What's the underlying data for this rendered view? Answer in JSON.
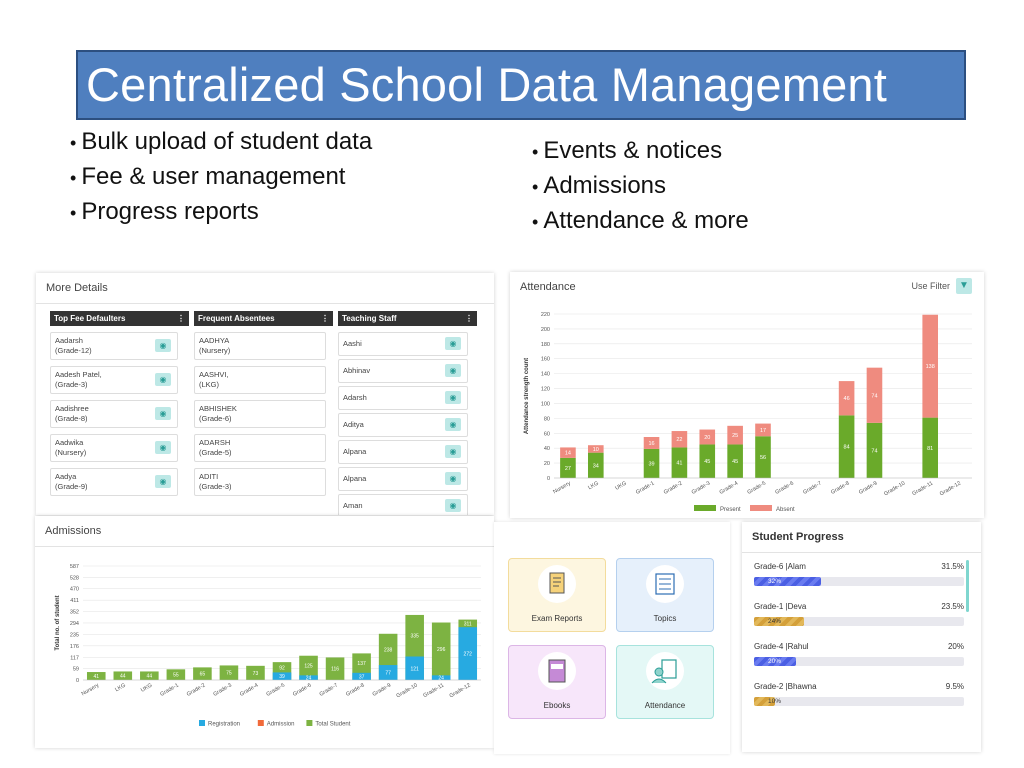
{
  "slide": {
    "title": "Centralized School Data Management",
    "bullets_left": [
      "Bulk upload of student data",
      "Fee & user management",
      "Progress reports"
    ],
    "bullets_right": [
      "Events & notices",
      "Admissions",
      "Attendance & more"
    ]
  },
  "more_details": {
    "title": "More Details",
    "columns": [
      {
        "header": "Top Fee Defaulters",
        "items": [
          [
            "Aadarsh",
            "(Grade-12)"
          ],
          [
            "Aadesh Patel,",
            "(Grade-3)"
          ],
          [
            "Aadishree",
            "(Grade-8)"
          ],
          [
            "Aadwika",
            "(Nursery)"
          ],
          [
            "Aadya",
            "(Grade-9)"
          ]
        ]
      },
      {
        "header": "Frequent Absentees",
        "items": [
          [
            "AADHYA",
            "(Nursery)"
          ],
          [
            "AASHVI,",
            "(LKG)"
          ],
          [
            "ABHISHEK",
            "(Grade-6)"
          ],
          [
            "ADARSH",
            "(Grade-5)"
          ],
          [
            "ADITI",
            "(Grade-3)"
          ]
        ]
      },
      {
        "header": "Teaching Staff",
        "items": [
          [
            "Aashi",
            ""
          ],
          [
            "Abhinav",
            ""
          ],
          [
            "Adarsh",
            ""
          ],
          [
            "Aditya",
            ""
          ],
          [
            "Alpana",
            ""
          ],
          [
            "Alpana",
            ""
          ],
          [
            "Aman",
            ""
          ]
        ]
      }
    ]
  },
  "attendance": {
    "title": "Attendance",
    "filter_label": "Use Filter",
    "colors": {
      "present": "#6aaa2a",
      "absent": "#ef8b7f"
    }
  },
  "admissions": {
    "title": "Admissions",
    "colors": {
      "registration": "#27aae1",
      "admission": "#f16a3a",
      "total": "#7db342"
    }
  },
  "tiles": [
    {
      "label": "Exam Reports",
      "icon": "exam-report-icon",
      "bg": "#fdf6e0",
      "border": "#f3dc9c"
    },
    {
      "label": "Topics",
      "icon": "topics-icon",
      "bg": "#e6f0fb",
      "border": "#b5d0ee"
    },
    {
      "label": "Ebooks",
      "icon": "ebook-icon",
      "bg": "#f7e6fa",
      "border": "#dcb6e6"
    },
    {
      "label": "Attendance",
      "icon": "attendance-icon",
      "bg": "#e4f8f6",
      "border": "#a7e3dd"
    }
  ],
  "student_progress": {
    "title": "Student Progress",
    "rows": [
      {
        "name": "Grade-6 |Alam",
        "pct": "31.5%",
        "bar_label": "32%",
        "fill": 0.32,
        "color": "#4b5fe3"
      },
      {
        "name": "Grade-1 |Deva",
        "pct": "23.5%",
        "bar_label": "24%",
        "fill": 0.24,
        "color": "#d4a03a"
      },
      {
        "name": "Grade-4 |Rahul",
        "pct": "20%",
        "bar_label": "20%",
        "fill": 0.2,
        "color": "#4b5fe3"
      },
      {
        "name": "Grade-2 |Bhawna",
        "pct": "9.5%",
        "bar_label": "10%",
        "fill": 0.1,
        "color": "#d4a03a"
      }
    ]
  },
  "chart_data": [
    {
      "type": "bar",
      "title": "Attendance",
      "ylabel": "Attendance strength count",
      "ylim": [
        0,
        220
      ],
      "yticks": [
        0,
        20,
        40,
        60,
        80,
        100,
        120,
        140,
        160,
        180,
        200,
        220
      ],
      "categories": [
        "Nursery",
        "LKG",
        "UKG",
        "Grade-1",
        "Grade-2",
        "Grade-3",
        "Grade-4",
        "Grade-5",
        "Grade-6",
        "Grade-7",
        "Grade-8",
        "Grade-9",
        "Grade-10",
        "Grade-11",
        "Grade-12"
      ],
      "series": [
        {
          "name": "Present",
          "values": [
            27,
            34,
            0,
            39,
            41,
            45,
            45,
            56,
            0,
            0,
            84,
            74,
            0,
            81,
            0
          ]
        },
        {
          "name": "Absent",
          "values": [
            14,
            10,
            0,
            16,
            22,
            20,
            25,
            17,
            0,
            0,
            46,
            74,
            0,
            138,
            0
          ]
        }
      ],
      "legend": "bottom"
    },
    {
      "type": "bar",
      "title": "Admissions",
      "ylabel": "Total no. of student",
      "ylim": [
        0,
        587
      ],
      "yticks": [
        0,
        59,
        117,
        176,
        235,
        294,
        352,
        411,
        470,
        528,
        587
      ],
      "categories": [
        "Nursery",
        "LKG",
        "UKG",
        "Grade-1",
        "Grade-2",
        "Grade-3",
        "Grade-4",
        "Grade-5",
        "Grade-6",
        "Grade-7",
        "Grade-8",
        "Grade-9",
        "Grade-10",
        "Grade-11",
        "Grade-12"
      ],
      "series": [
        {
          "name": "Registration",
          "values": [
            0,
            0,
            0,
            0,
            0,
            0,
            0,
            39,
            24,
            0,
            37,
            77,
            121,
            24,
            272
          ]
        },
        {
          "name": "Admission",
          "values": [
            0,
            0,
            0,
            0,
            0,
            0,
            0,
            0,
            0,
            0,
            0,
            0,
            0,
            0,
            0
          ]
        },
        {
          "name": "Total Student",
          "values": [
            41,
            44,
            44,
            55,
            65,
            75,
            73,
            92,
            125,
            116,
            137,
            238,
            335,
            296,
            311
          ]
        }
      ],
      "legend": "bottom"
    }
  ]
}
